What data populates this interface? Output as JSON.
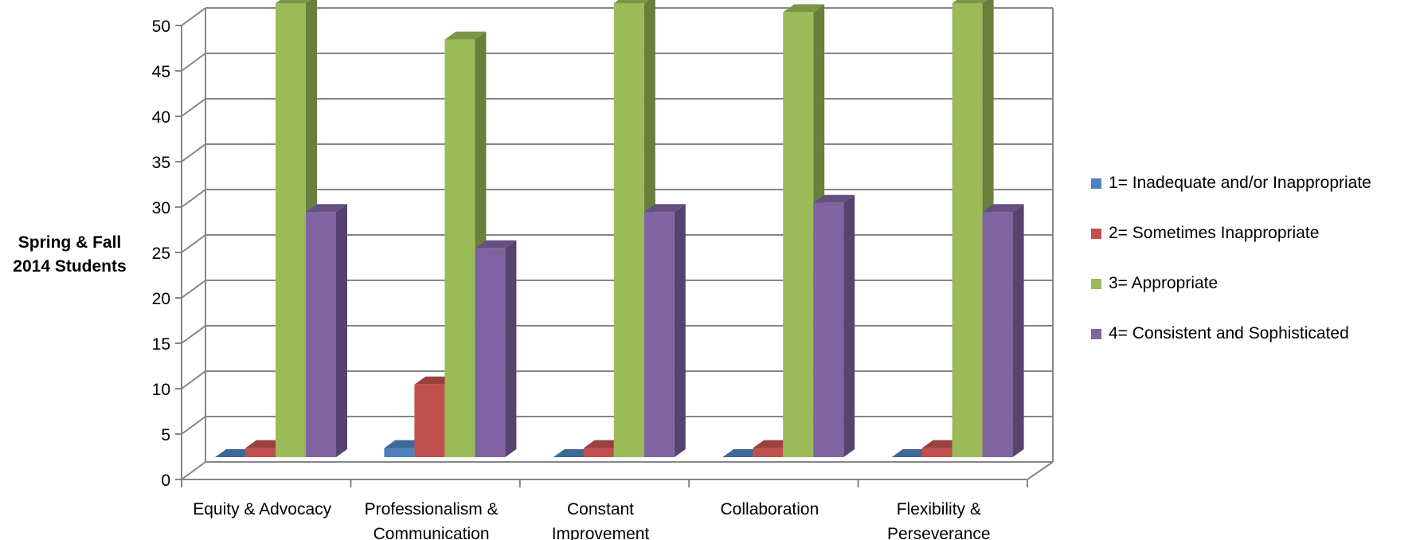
{
  "chart_data": {
    "type": "bar",
    "style": "3d-clustered-column",
    "ylabel_lines": [
      "Spring & Fall",
      "2014 Students"
    ],
    "ylim": [
      0,
      50
    ],
    "yticks": [
      0,
      5,
      10,
      15,
      20,
      25,
      30,
      35,
      40,
      45,
      50
    ],
    "grid": true,
    "legend_position": "right",
    "categories": [
      [
        "Equity & Advocacy"
      ],
      [
        "Professionalism &",
        "Communication"
      ],
      [
        "Constant",
        "Improvement"
      ],
      [
        "Collaboration"
      ],
      [
        "Flexibility &",
        "Perseverance"
      ]
    ],
    "series": [
      {
        "name": "1= Inadequate and/or Inappropriate",
        "color": "#4F81BD",
        "values": [
          0,
          1,
          0,
          0,
          0
        ]
      },
      {
        "name": "2= Sometimes Inappropriate",
        "color": "#C0504D",
        "values": [
          1,
          8,
          1,
          1,
          1
        ]
      },
      {
        "name": "3= Appropriate",
        "color": "#9BBB59",
        "values": [
          50,
          46,
          50,
          49,
          50
        ]
      },
      {
        "name": "4= Consistent and Sophisticated",
        "color": "#8064A2",
        "values": [
          27,
          23,
          27,
          28,
          27
        ]
      }
    ]
  }
}
